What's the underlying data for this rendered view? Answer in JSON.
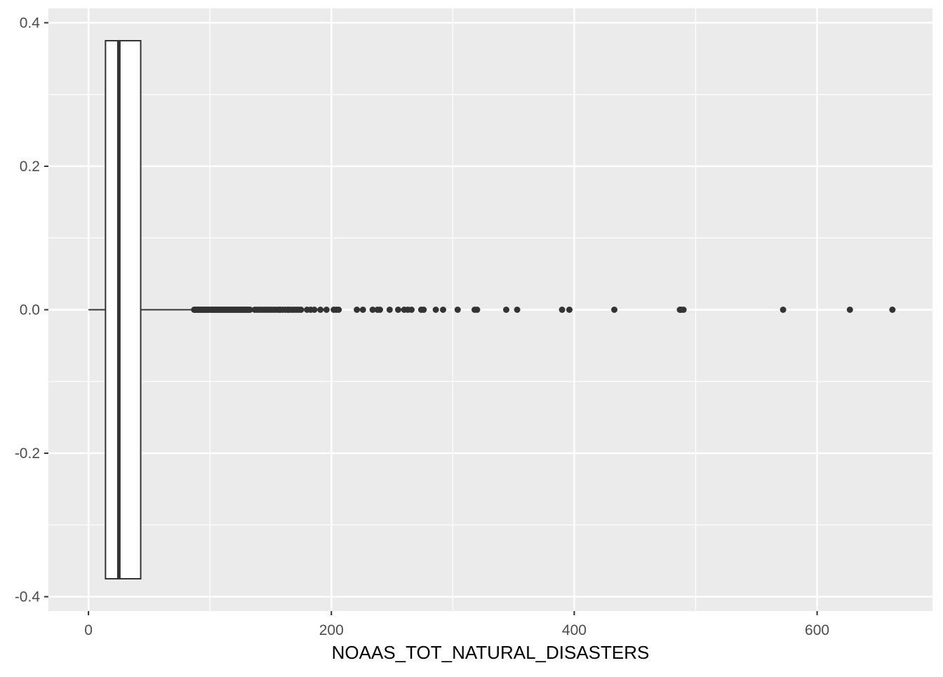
{
  "chart_data": {
    "type": "boxplot",
    "orientation": "horizontal",
    "title": "",
    "xlabel": "NOAAS_TOT_NATURAL_DISASTERS",
    "ylabel": "",
    "xlim": [
      -33,
      695
    ],
    "ylim": [
      -0.42,
      0.42
    ],
    "x_ticks": [
      0,
      200,
      400,
      600
    ],
    "x_tick_labels": [
      "0",
      "200",
      "400",
      "600"
    ],
    "x_minor_ticks": [
      100,
      300,
      500
    ],
    "y_ticks": [
      -0.4,
      -0.2,
      0.0,
      0.2,
      0.4
    ],
    "y_tick_labels": [
      "-0.4",
      "-0.2",
      "0.0",
      "0.2",
      "0.4"
    ],
    "y_minor_ticks": [
      -0.3,
      -0.1,
      0.1,
      0.3
    ],
    "grid": true,
    "panel_background": "#ebebeb",
    "grid_color": "#ffffff",
    "box_fill": "#ffffff",
    "box_stroke": "#333333",
    "point_color": "#333333",
    "box": {
      "y": 0.0,
      "half_height": 0.375,
      "whisker_low": 0,
      "q1": 14,
      "median": 25,
      "q3": 43,
      "whisker_high": 86
    },
    "outliers": [
      87,
      88,
      89,
      90,
      91,
      92,
      93,
      94,
      95,
      96,
      97,
      98,
      99,
      100,
      101,
      102,
      103,
      104,
      105,
      106,
      107,
      108,
      109,
      110,
      111,
      112,
      113,
      114,
      115,
      116,
      117,
      118,
      119,
      120,
      121,
      122,
      123,
      124,
      125,
      126,
      127,
      128,
      129,
      130,
      131,
      132,
      133,
      137,
      139,
      141,
      143,
      145,
      147,
      149,
      151,
      153,
      155,
      157,
      158,
      160,
      162,
      164,
      165,
      167,
      169,
      171,
      173,
      175,
      180,
      183,
      186,
      191,
      196,
      202,
      204,
      206,
      221,
      226,
      234,
      238,
      240,
      248,
      255,
      260,
      263,
      266,
      274,
      276,
      286,
      292,
      304,
      318,
      320,
      344,
      353,
      390,
      396,
      433,
      487,
      488,
      490,
      572,
      627,
      662
    ]
  }
}
